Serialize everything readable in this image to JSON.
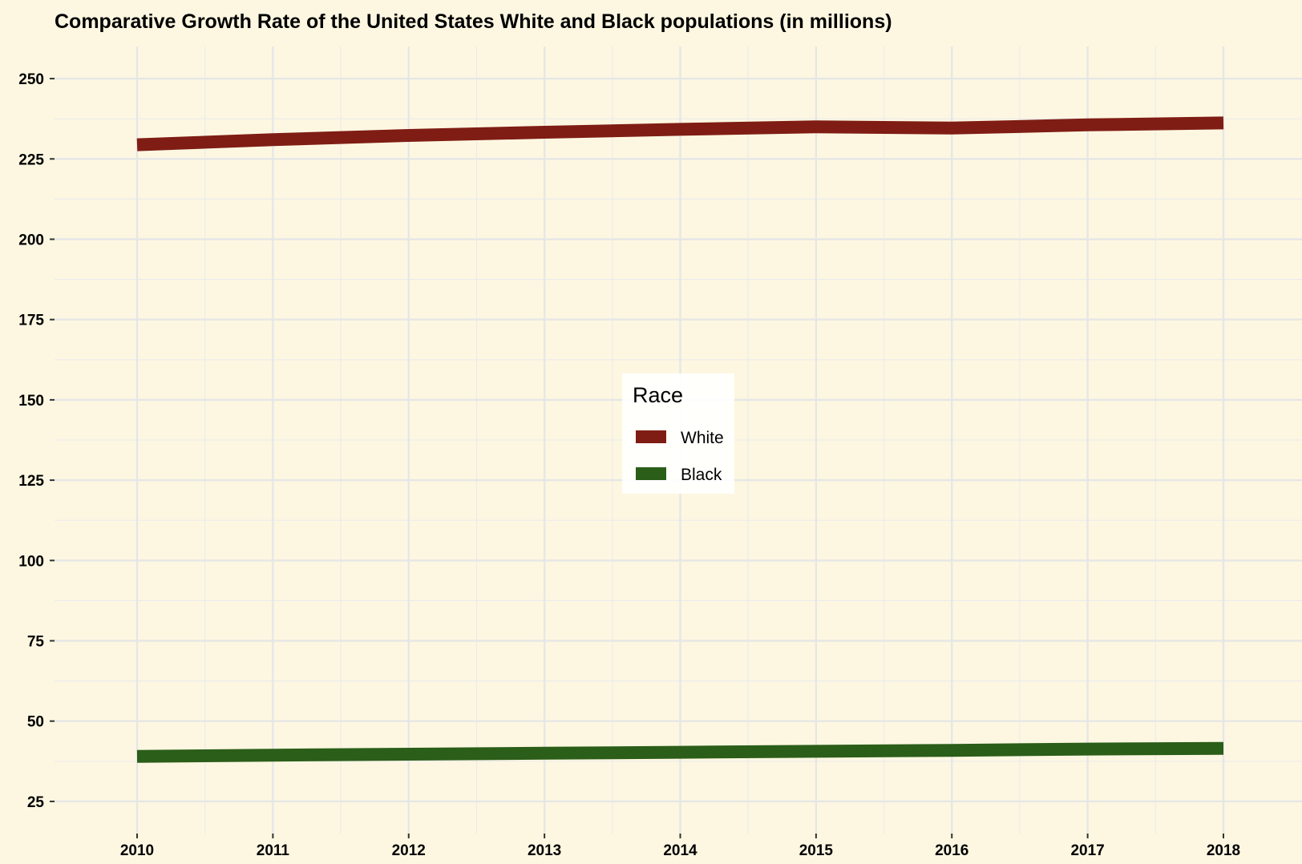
{
  "chart_data": {
    "type": "line",
    "title": "Comparative Growth Rate of the United States White and Black populations (in millions)",
    "xlabel": "",
    "ylabel": "",
    "x": [
      "2010",
      "2011",
      "2012",
      "2013",
      "2014",
      "2015",
      "2016",
      "2017",
      "2018"
    ],
    "y_ticks": [
      "25",
      "50",
      "75",
      "100",
      "125",
      "150",
      "175",
      "200",
      "225",
      "250"
    ],
    "ylim": [
      15,
      260
    ],
    "grid": true,
    "legend": {
      "title": "Race",
      "position": "center"
    },
    "series": [
      {
        "name": "White",
        "color": "#7f1d14",
        "values": [
          229.4,
          231.0,
          232.3,
          233.3,
          234.2,
          235.0,
          234.6,
          235.6,
          236.2
        ]
      },
      {
        "name": "Black",
        "color": "#2b5e19",
        "values": [
          39.0,
          39.4,
          39.7,
          40.0,
          40.3,
          40.6,
          40.9,
          41.3,
          41.5
        ]
      }
    ]
  }
}
